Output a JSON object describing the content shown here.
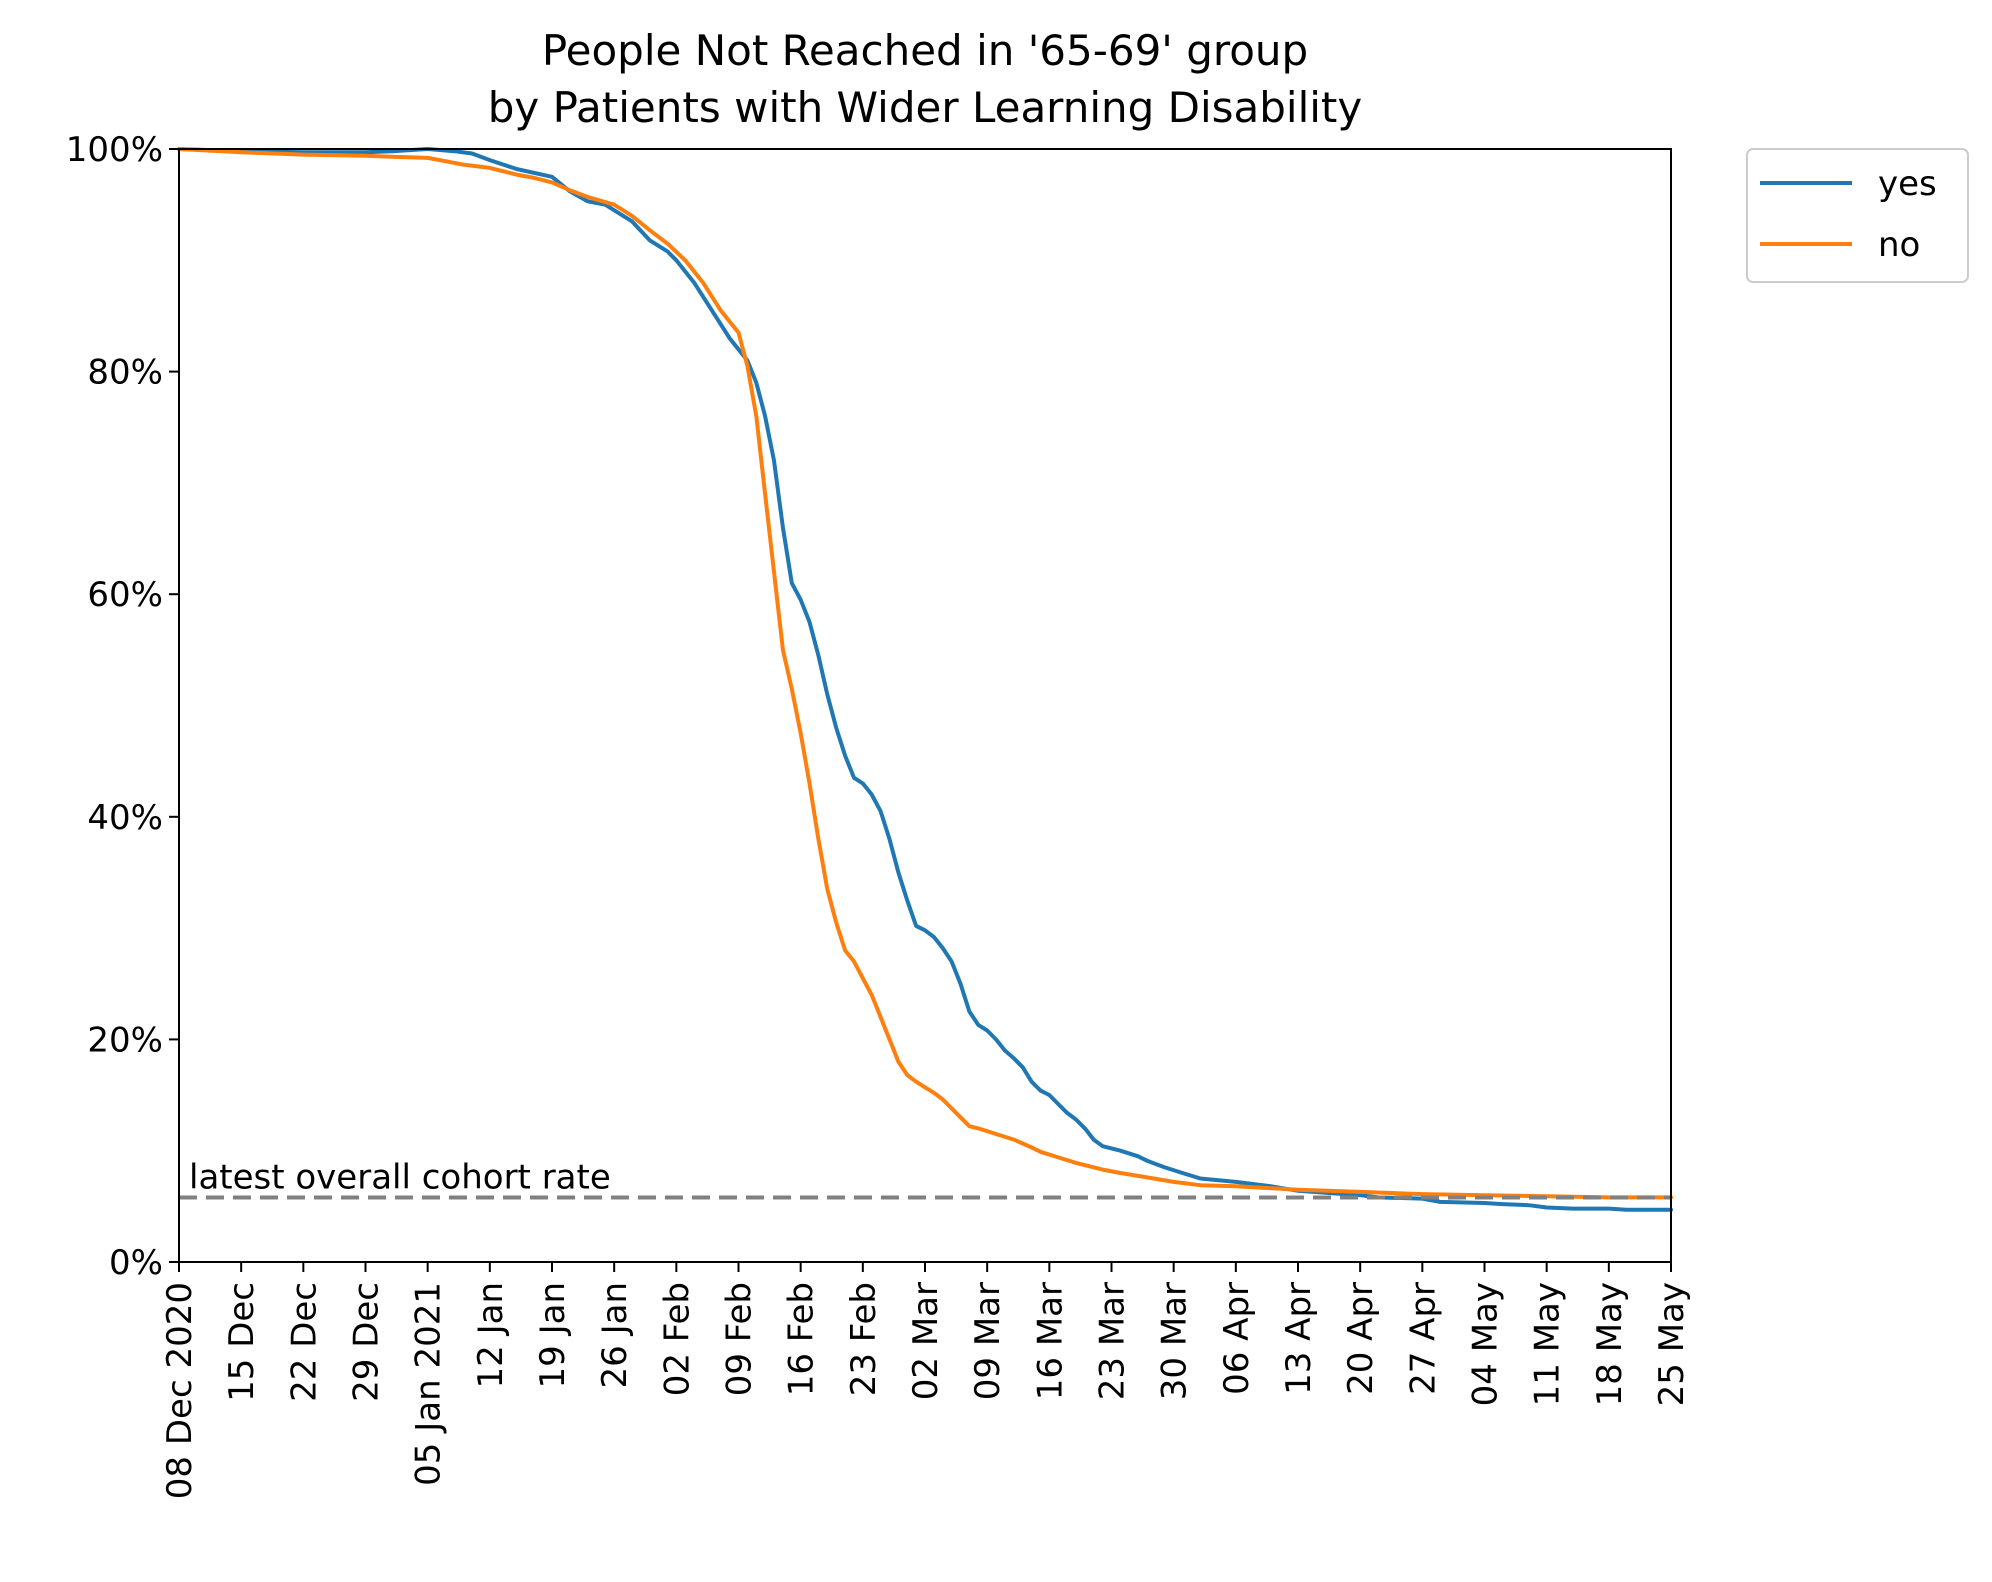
{
  "chart_data": {
    "type": "line",
    "title": [
      "People Not Reached in '65-69' group",
      "by Patients with Wider Learning Disability"
    ],
    "xlabel": "",
    "ylabel": "",
    "x_range": [
      "2020-12-08",
      "2021-05-25"
    ],
    "ylim": [
      0,
      100
    ],
    "y_ticks": [
      {
        "value": 0,
        "label": "0%"
      },
      {
        "value": 20,
        "label": "20%"
      },
      {
        "value": 40,
        "label": "40%"
      },
      {
        "value": 60,
        "label": "60%"
      },
      {
        "value": 80,
        "label": "80%"
      },
      {
        "value": 100,
        "label": "100%"
      }
    ],
    "x_ticks": [
      {
        "date": "2020-12-08",
        "label": "08 Dec 2020"
      },
      {
        "date": "2020-12-15",
        "label": "15 Dec"
      },
      {
        "date": "2020-12-22",
        "label": "22 Dec"
      },
      {
        "date": "2020-12-29",
        "label": "29 Dec"
      },
      {
        "date": "2021-01-05",
        "label": "05 Jan 2021"
      },
      {
        "date": "2021-01-12",
        "label": "12 Jan"
      },
      {
        "date": "2021-01-19",
        "label": "19 Jan"
      },
      {
        "date": "2021-01-26",
        "label": "26 Jan"
      },
      {
        "date": "2021-02-02",
        "label": "02 Feb"
      },
      {
        "date": "2021-02-09",
        "label": "09 Feb"
      },
      {
        "date": "2021-02-16",
        "label": "16 Feb"
      },
      {
        "date": "2021-02-23",
        "label": "23 Feb"
      },
      {
        "date": "2021-03-02",
        "label": "02 Mar"
      },
      {
        "date": "2021-03-09",
        "label": "09 Mar"
      },
      {
        "date": "2021-03-16",
        "label": "16 Mar"
      },
      {
        "date": "2021-03-23",
        "label": "23 Mar"
      },
      {
        "date": "2021-03-30",
        "label": "30 Mar"
      },
      {
        "date": "2021-04-06",
        "label": "06 Apr"
      },
      {
        "date": "2021-04-13",
        "label": "13 Apr"
      },
      {
        "date": "2021-04-20",
        "label": "20 Apr"
      },
      {
        "date": "2021-04-27",
        "label": "27 Apr"
      },
      {
        "date": "2021-05-04",
        "label": "04 May"
      },
      {
        "date": "2021-05-11",
        "label": "11 May"
      },
      {
        "date": "2021-05-18",
        "label": "18 May"
      },
      {
        "date": "2021-05-25",
        "label": "25 May"
      }
    ],
    "grid": false,
    "legend_position": "outside-top-right",
    "series": [
      {
        "name": "yes",
        "color": "#1f77b4",
        "points": [
          [
            "2020-12-08",
            100
          ],
          [
            "2020-12-15",
            99.8
          ],
          [
            "2020-12-22",
            99.7
          ],
          [
            "2020-12-29",
            99.7
          ],
          [
            "2021-01-01",
            99.8
          ],
          [
            "2021-01-05",
            100
          ],
          [
            "2021-01-08",
            99.8
          ],
          [
            "2021-01-10",
            99.6
          ],
          [
            "2021-01-12",
            99.0
          ],
          [
            "2021-01-15",
            98.2
          ],
          [
            "2021-01-19",
            97.5
          ],
          [
            "2021-01-21",
            96.2
          ],
          [
            "2021-01-23",
            95.3
          ],
          [
            "2021-01-25",
            95.0
          ],
          [
            "2021-01-28",
            93.5
          ],
          [
            "2021-01-30",
            91.8
          ],
          [
            "2021-02-01",
            90.8
          ],
          [
            "2021-02-02",
            90.0
          ],
          [
            "2021-02-04",
            88.0
          ],
          [
            "2021-02-06",
            85.5
          ],
          [
            "2021-02-08",
            83.0
          ],
          [
            "2021-02-10",
            81.0
          ],
          [
            "2021-02-11",
            79.0
          ],
          [
            "2021-02-12",
            76.0
          ],
          [
            "2021-02-13",
            72.0
          ],
          [
            "2021-02-14",
            66.0
          ],
          [
            "2021-02-15",
            61.0
          ],
          [
            "2021-02-16",
            59.5
          ],
          [
            "2021-02-17",
            57.5
          ],
          [
            "2021-02-18",
            54.5
          ],
          [
            "2021-02-19",
            51.0
          ],
          [
            "2021-02-20",
            48.0
          ],
          [
            "2021-02-21",
            45.5
          ],
          [
            "2021-02-22",
            43.5
          ],
          [
            "2021-02-23",
            43.0
          ],
          [
            "2021-02-24",
            42.0
          ],
          [
            "2021-02-25",
            40.5
          ],
          [
            "2021-02-26",
            38.0
          ],
          [
            "2021-02-27",
            35.0
          ],
          [
            "2021-02-28",
            32.5
          ],
          [
            "2021-03-01",
            30.2
          ],
          [
            "2021-03-02",
            29.8
          ],
          [
            "2021-03-03",
            29.2
          ],
          [
            "2021-03-04",
            28.2
          ],
          [
            "2021-03-05",
            27.0
          ],
          [
            "2021-03-06",
            25.0
          ],
          [
            "2021-03-07",
            22.5
          ],
          [
            "2021-03-08",
            21.3
          ],
          [
            "2021-03-09",
            20.8
          ],
          [
            "2021-03-10",
            20.0
          ],
          [
            "2021-03-11",
            19.0
          ],
          [
            "2021-03-12",
            18.3
          ],
          [
            "2021-03-13",
            17.5
          ],
          [
            "2021-03-14",
            16.2
          ],
          [
            "2021-03-15",
            15.4
          ],
          [
            "2021-03-16",
            15.0
          ],
          [
            "2021-03-17",
            14.2
          ],
          [
            "2021-03-18",
            13.4
          ],
          [
            "2021-03-19",
            12.8
          ],
          [
            "2021-03-20",
            12.0
          ],
          [
            "2021-03-21",
            11.0
          ],
          [
            "2021-03-22",
            10.4
          ],
          [
            "2021-03-24",
            10.0
          ],
          [
            "2021-03-26",
            9.5
          ],
          [
            "2021-03-27",
            9.1
          ],
          [
            "2021-03-29",
            8.5
          ],
          [
            "2021-03-31",
            8.0
          ],
          [
            "2021-04-02",
            7.5
          ],
          [
            "2021-04-06",
            7.2
          ],
          [
            "2021-04-10",
            6.8
          ],
          [
            "2021-04-13",
            6.4
          ],
          [
            "2021-04-20",
            6.0
          ],
          [
            "2021-04-22",
            5.8
          ],
          [
            "2021-04-27",
            5.7
          ],
          [
            "2021-04-29",
            5.4
          ],
          [
            "2021-05-04",
            5.3
          ],
          [
            "2021-05-06",
            5.2
          ],
          [
            "2021-05-09",
            5.1
          ],
          [
            "2021-05-11",
            4.9
          ],
          [
            "2021-05-14",
            4.8
          ],
          [
            "2021-05-18",
            4.8
          ],
          [
            "2021-05-20",
            4.7
          ],
          [
            "2021-05-25",
            4.7
          ]
        ]
      },
      {
        "name": "no",
        "color": "#ff7f0e",
        "points": [
          [
            "2020-12-08",
            100
          ],
          [
            "2020-12-15",
            99.7
          ],
          [
            "2020-12-22",
            99.5
          ],
          [
            "2020-12-29",
            99.4
          ],
          [
            "2021-01-01",
            99.3
          ],
          [
            "2021-01-05",
            99.2
          ],
          [
            "2021-01-07",
            98.9
          ],
          [
            "2021-01-09",
            98.6
          ],
          [
            "2021-01-12",
            98.3
          ],
          [
            "2021-01-15",
            97.7
          ],
          [
            "2021-01-17",
            97.4
          ],
          [
            "2021-01-19",
            97.0
          ],
          [
            "2021-01-21",
            96.3
          ],
          [
            "2021-01-23",
            95.7
          ],
          [
            "2021-01-26",
            95.0
          ],
          [
            "2021-01-28",
            94.0
          ],
          [
            "2021-01-30",
            92.7
          ],
          [
            "2021-02-01",
            91.5
          ],
          [
            "2021-02-03",
            90.0
          ],
          [
            "2021-02-05",
            88.0
          ],
          [
            "2021-02-07",
            85.5
          ],
          [
            "2021-02-09",
            83.5
          ],
          [
            "2021-02-10",
            80.5
          ],
          [
            "2021-02-11",
            76.0
          ],
          [
            "2021-02-12",
            69.0
          ],
          [
            "2021-02-13",
            62.0
          ],
          [
            "2021-02-14",
            55.0
          ],
          [
            "2021-02-15",
            51.5
          ],
          [
            "2021-02-16",
            47.5
          ],
          [
            "2021-02-17",
            43.0
          ],
          [
            "2021-02-18",
            38.0
          ],
          [
            "2021-02-19",
            33.5
          ],
          [
            "2021-02-20",
            30.5
          ],
          [
            "2021-02-21",
            28.0
          ],
          [
            "2021-02-22",
            27.0
          ],
          [
            "2021-02-23",
            25.5
          ],
          [
            "2021-02-24",
            24.0
          ],
          [
            "2021-02-25",
            22.0
          ],
          [
            "2021-02-26",
            20.0
          ],
          [
            "2021-02-27",
            18.0
          ],
          [
            "2021-02-28",
            16.8
          ],
          [
            "2021-03-01",
            16.2
          ],
          [
            "2021-03-02",
            15.7
          ],
          [
            "2021-03-03",
            15.2
          ],
          [
            "2021-03-04",
            14.6
          ],
          [
            "2021-03-05",
            13.8
          ],
          [
            "2021-03-06",
            13.0
          ],
          [
            "2021-03-07",
            12.2
          ],
          [
            "2021-03-08",
            12.0
          ],
          [
            "2021-03-10",
            11.5
          ],
          [
            "2021-03-12",
            11.0
          ],
          [
            "2021-03-14",
            10.3
          ],
          [
            "2021-03-15",
            9.9
          ],
          [
            "2021-03-17",
            9.4
          ],
          [
            "2021-03-19",
            8.9
          ],
          [
            "2021-03-22",
            8.3
          ],
          [
            "2021-03-24",
            8.0
          ],
          [
            "2021-03-27",
            7.6
          ],
          [
            "2021-03-30",
            7.2
          ],
          [
            "2021-04-02",
            6.9
          ],
          [
            "2021-04-06",
            6.8
          ],
          [
            "2021-04-13",
            6.5
          ],
          [
            "2021-04-20",
            6.3
          ],
          [
            "2021-04-27",
            6.1
          ],
          [
            "2021-05-04",
            6.0
          ],
          [
            "2021-05-11",
            5.9
          ],
          [
            "2021-05-18",
            5.8
          ],
          [
            "2021-05-25",
            5.8
          ]
        ]
      }
    ],
    "reference_line": {
      "label": "latest overall cohort rate",
      "value": 5.8,
      "color": "#808080",
      "style": "dashed"
    }
  }
}
